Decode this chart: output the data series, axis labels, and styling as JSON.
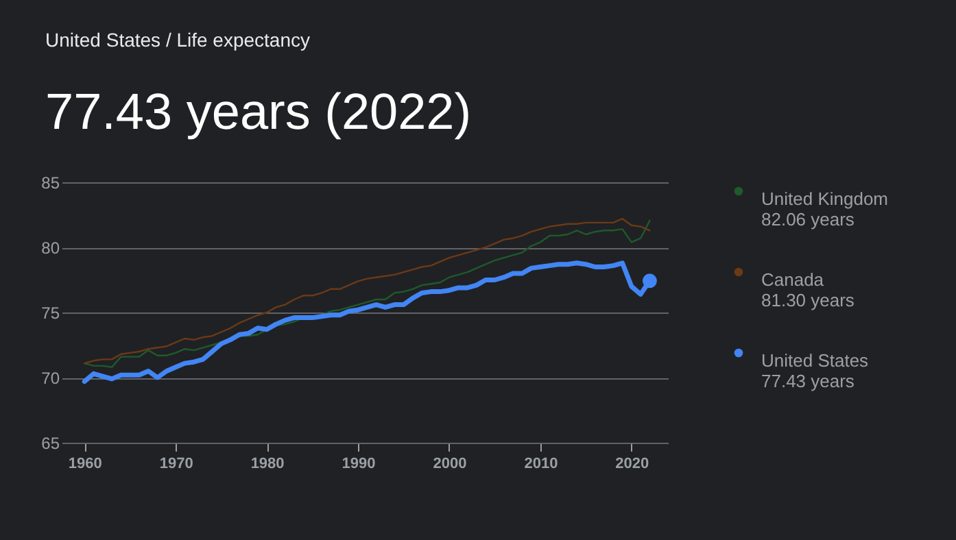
{
  "chart_data": {
    "type": "line",
    "title": "United States / Life expectancy",
    "subtitle": "77.43 years (2022)",
    "x": [
      1960,
      1961,
      1962,
      1963,
      1964,
      1965,
      1966,
      1967,
      1968,
      1969,
      1970,
      1971,
      1972,
      1973,
      1974,
      1975,
      1976,
      1977,
      1978,
      1979,
      1980,
      1981,
      1982,
      1983,
      1984,
      1985,
      1986,
      1987,
      1988,
      1989,
      1990,
      1991,
      1992,
      1993,
      1994,
      1995,
      1996,
      1997,
      1998,
      1999,
      2000,
      2001,
      2002,
      2003,
      2004,
      2005,
      2006,
      2007,
      2008,
      2009,
      2010,
      2011,
      2012,
      2013,
      2014,
      2015,
      2016,
      2017,
      2018,
      2019,
      2020,
      2021,
      2022
    ],
    "series": [
      {
        "name": "United Kingdom",
        "color": "#1e5a2c",
        "values": [
          71.1,
          70.9,
          70.9,
          70.8,
          71.6,
          71.6,
          71.6,
          72.1,
          71.7,
          71.7,
          71.9,
          72.2,
          72.1,
          72.3,
          72.5,
          72.7,
          72.8,
          73.2,
          73.2,
          73.3,
          73.7,
          74.0,
          74.1,
          74.3,
          74.6,
          null,
          74.8,
          75.1,
          75.2,
          75.4,
          75.6,
          75.8,
          76.0,
          76.0,
          76.5,
          76.6,
          76.8,
          77.1,
          77.2,
          77.3,
          77.7,
          77.9,
          78.1,
          78.4,
          78.7,
          79.0,
          79.2,
          79.4,
          79.6,
          80.1,
          80.4,
          80.9,
          80.9,
          81.0,
          81.3,
          81.0,
          81.2,
          81.3,
          81.3,
          81.4,
          80.4,
          80.7,
          82.06
        ]
      },
      {
        "name": "Canada",
        "color": "#6b3a17",
        "values": [
          71.1,
          71.3,
          71.4,
          71.4,
          71.8,
          71.9,
          72.0,
          72.2,
          72.3,
          72.4,
          72.7,
          73.0,
          72.9,
          73.1,
          73.2,
          73.5,
          73.8,
          74.2,
          74.5,
          74.8,
          75.0,
          75.4,
          75.6,
          76.0,
          76.3,
          76.3,
          76.5,
          76.8,
          76.8,
          77.1,
          77.4,
          77.6,
          77.7,
          77.8,
          77.9,
          78.1,
          78.3,
          78.5,
          78.6,
          78.9,
          79.2,
          79.4,
          79.6,
          79.8,
          80.0,
          80.3,
          80.6,
          80.7,
          80.9,
          81.2,
          81.4,
          81.6,
          81.7,
          81.8,
          81.8,
          81.9,
          81.9,
          81.9,
          81.9,
          82.2,
          81.7,
          81.6,
          81.3
        ]
      },
      {
        "name": "United States",
        "color": "#4285f4",
        "values": [
          69.7,
          70.3,
          70.1,
          69.9,
          70.2,
          70.2,
          70.2,
          70.5,
          70.0,
          70.5,
          70.8,
          71.1,
          71.2,
          71.4,
          72.0,
          72.6,
          72.9,
          73.3,
          73.4,
          73.8,
          73.7,
          74.1,
          74.4,
          74.6,
          74.6,
          74.6,
          74.7,
          74.8,
          74.8,
          75.1,
          75.2,
          75.4,
          75.6,
          75.4,
          75.6,
          75.6,
          76.1,
          76.5,
          76.6,
          76.6,
          76.7,
          76.9,
          76.9,
          77.1,
          77.5,
          77.5,
          77.7,
          78.0,
          78.0,
          78.4,
          78.5,
          78.6,
          78.7,
          78.7,
          78.8,
          78.7,
          78.5,
          78.5,
          78.6,
          78.8,
          77.0,
          76.4,
          77.43
        ]
      }
    ],
    "annotations": [
      "82.06 years",
      "81.30 years",
      "77.43 years"
    ],
    "xlim": [
      1957.5,
      2024
    ],
    "xticks": [
      1960,
      1970,
      1980,
      1990,
      2000,
      2010,
      2020
    ],
    "ylim": [
      65,
      85
    ],
    "yticks": [
      65,
      70,
      75,
      80,
      85
    ],
    "grid": "y",
    "legend": "right"
  }
}
